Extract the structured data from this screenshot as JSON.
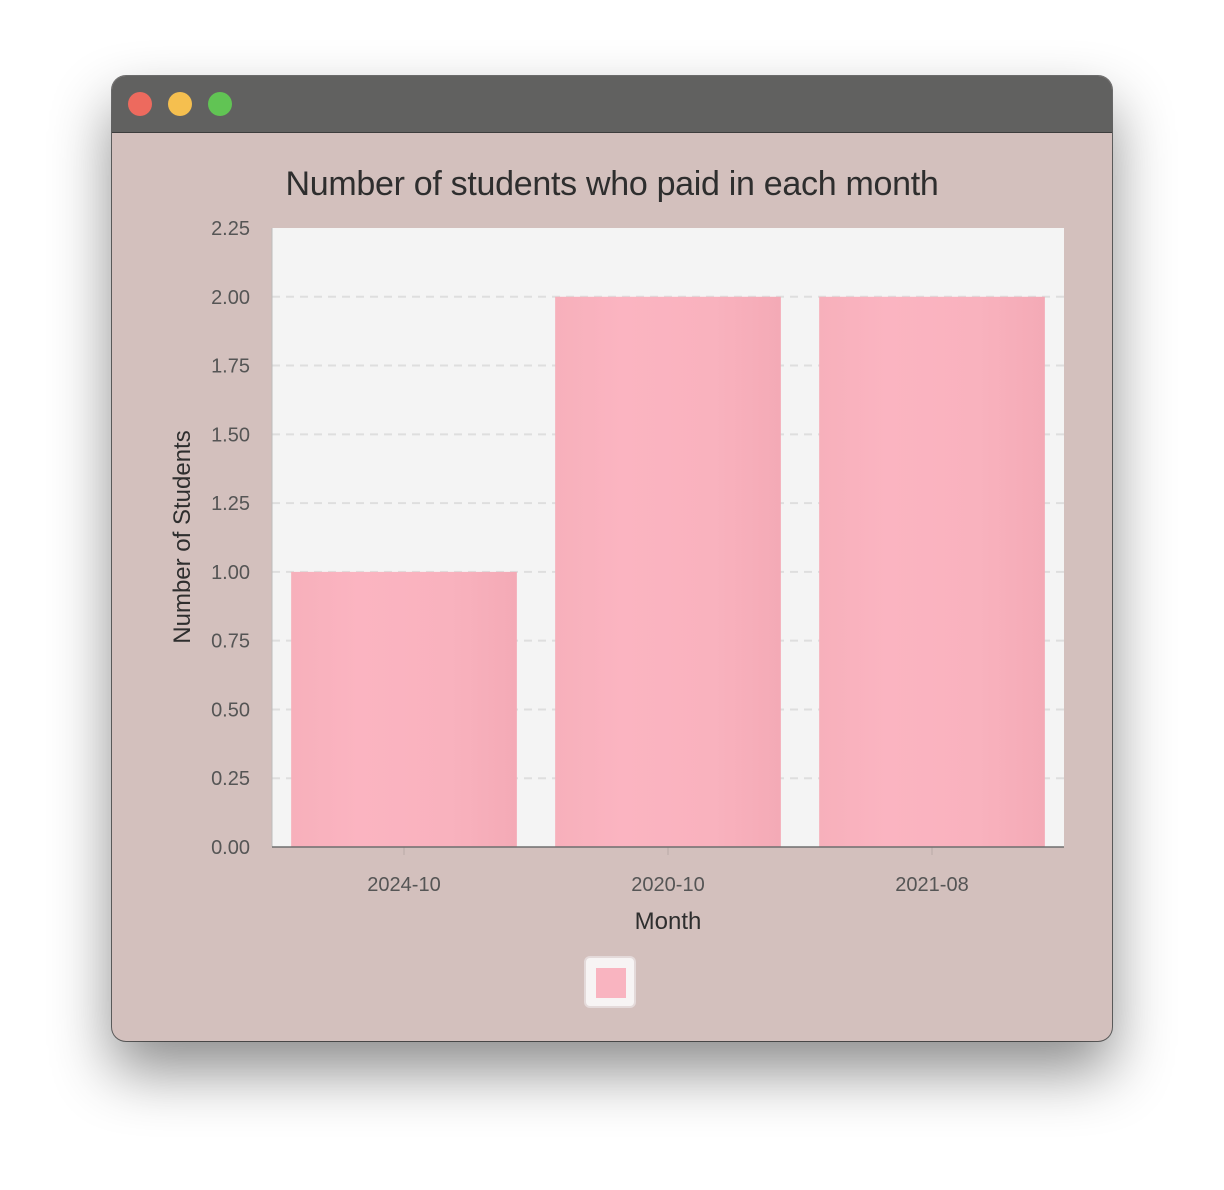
{
  "window": {
    "controls": [
      "close",
      "minimize",
      "maximize"
    ]
  },
  "colors": {
    "bar": "#f9b4c0",
    "plot_background": "#f4f4f4",
    "window_background": "#d3c0bd",
    "titlebar": "#616160"
  },
  "chart_data": {
    "type": "bar",
    "title": "Number of students who paid in each month",
    "xlabel": "Month",
    "ylabel": "Number of Students",
    "categories": [
      "2024-10",
      "2020-10",
      "2021-08"
    ],
    "values": [
      1,
      2,
      2
    ],
    "ylim": [
      0,
      2.25
    ],
    "yticks": [
      "0.00",
      "0.25",
      "0.50",
      "0.75",
      "1.00",
      "1.25",
      "1.50",
      "1.75",
      "2.00",
      "2.25"
    ],
    "grid": "horizontal-dashed",
    "legend": {
      "placement": "bottom-center",
      "entries": [
        ""
      ]
    }
  }
}
